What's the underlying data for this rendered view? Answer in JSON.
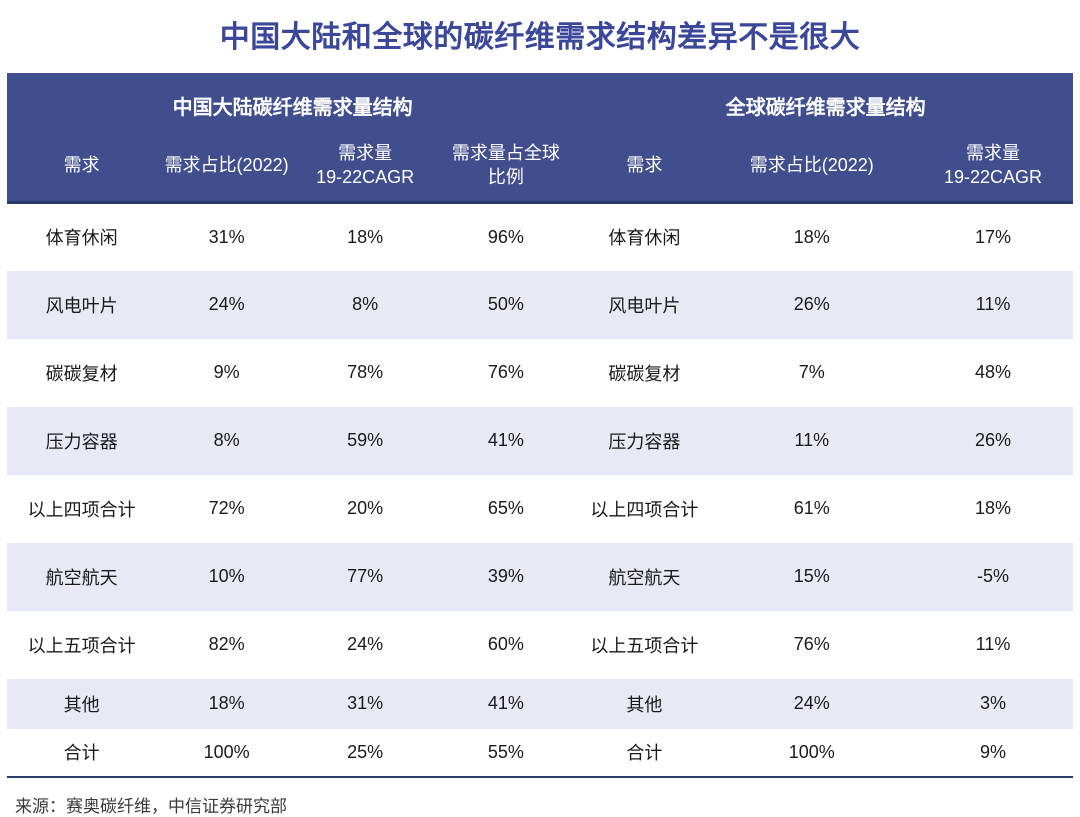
{
  "title": "中国大陆和全球的碳纤维需求结构差异不是很大",
  "source": "来源：赛奥碳纤维，中信证券研究部",
  "colors": {
    "title_text": "#3B4798",
    "header_bg": "#404E8D",
    "header_text": "#FFFFFF",
    "stripe_row_bg": "#E7EAF4",
    "body_text": "#1A1A1A",
    "table_border": "#2E3B6E"
  },
  "chart_data": {
    "type": "table",
    "title": "中国大陆和全球的碳纤维需求结构差异不是很大",
    "group_headers": [
      "中国大陆碳纤维需求量结构",
      "全球碳纤维需求量结构"
    ],
    "group_spans": [
      4,
      3
    ],
    "columns": [
      "需求",
      "需求占比(2022)",
      "需求量\n19-22CAGR",
      "需求量占全球\n比例",
      "需求",
      "需求占比(2022)",
      "需求量\n19-22CAGR"
    ],
    "rows": [
      [
        "体育休闲",
        "31%",
        "18%",
        "96%",
        "体育休闲",
        "18%",
        "17%"
      ],
      [
        "风电叶片",
        "24%",
        "8%",
        "50%",
        "风电叶片",
        "26%",
        "11%"
      ],
      [
        "碳碳复材",
        "9%",
        "78%",
        "76%",
        "碳碳复材",
        "7%",
        "48%"
      ],
      [
        "压力容器",
        "8%",
        "59%",
        "41%",
        "压力容器",
        "11%",
        "26%"
      ],
      [
        "以上四项合计",
        "72%",
        "20%",
        "65%",
        "以上四项合计",
        "61%",
        "18%"
      ],
      [
        "航空航天",
        "10%",
        "77%",
        "39%",
        "航空航天",
        "15%",
        "-5%"
      ],
      [
        "以上五项合计",
        "82%",
        "24%",
        "60%",
        "以上五项合计",
        "76%",
        "11%"
      ],
      [
        "其他",
        "18%",
        "31%",
        "41%",
        "其他",
        "24%",
        "3%"
      ],
      [
        "合计",
        "100%",
        "25%",
        "55%",
        "合计",
        "100%",
        "9%"
      ]
    ],
    "source": "来源：赛奥碳纤维，中信证券研究部"
  }
}
